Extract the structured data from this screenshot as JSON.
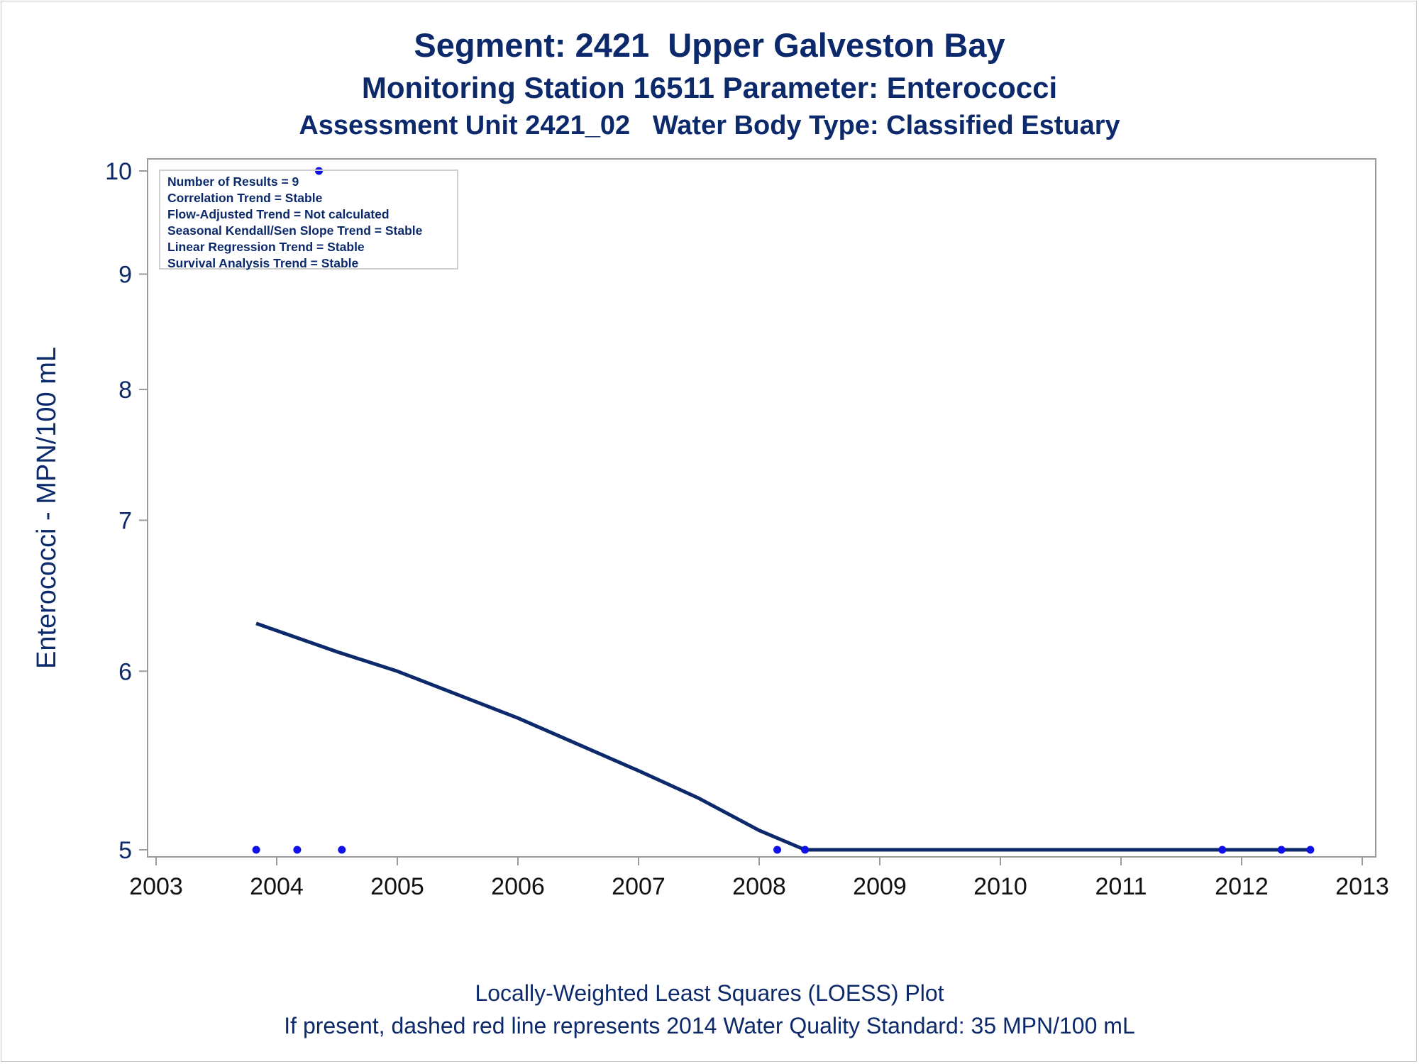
{
  "chart_data": {
    "type": "scatter",
    "title": "Segment: 2421  Upper Galveston Bay",
    "subtitle": "Monitoring Station 16511 Parameter: Enterococci",
    "subtitle2": "Assessment Unit 2421_02   Water Body Type: Classified Estuary",
    "xlabel": "",
    "ylabel": "Enterococci - MPN/100 mL",
    "y_scale": "log",
    "xlim": [
      2003,
      2013
    ],
    "ylim": [
      4.94,
      10.2
    ],
    "x_ticks": [
      2003,
      2004,
      2005,
      2006,
      2007,
      2008,
      2009,
      2010,
      2011,
      2012,
      2013
    ],
    "y_ticks": [
      5,
      6,
      7,
      8,
      9,
      10
    ],
    "points": [
      {
        "x": 2003.83,
        "y": 5
      },
      {
        "x": 2004.17,
        "y": 5
      },
      {
        "x": 2004.35,
        "y": 10
      },
      {
        "x": 2004.54,
        "y": 5
      },
      {
        "x": 2008.15,
        "y": 5
      },
      {
        "x": 2008.38,
        "y": 5
      },
      {
        "x": 2011.84,
        "y": 5
      },
      {
        "x": 2012.33,
        "y": 5
      },
      {
        "x": 2012.57,
        "y": 5
      }
    ],
    "loess": [
      {
        "x": 2003.83,
        "y": 6.3
      },
      {
        "x": 2004.5,
        "y": 6.12
      },
      {
        "x": 2005.0,
        "y": 6.0
      },
      {
        "x": 2006.0,
        "y": 5.72
      },
      {
        "x": 2007.0,
        "y": 5.42
      },
      {
        "x": 2007.5,
        "y": 5.27
      },
      {
        "x": 2008.0,
        "y": 5.1
      },
      {
        "x": 2008.38,
        "y": 5.0
      },
      {
        "x": 2010.25,
        "y": 5.0
      },
      {
        "x": 2012.57,
        "y": 5.0
      }
    ],
    "stats": [
      "Number of Results = 9",
      "Correlation Trend = Stable",
      "Flow-Adjusted Trend = Not calculated",
      "Seasonal Kendall/Sen Slope Trend = Stable",
      "Linear Regression Trend = Stable",
      "Survival Analysis Trend = Stable"
    ],
    "footnote1": "Locally-Weighted Least Squares (LOESS) Plot",
    "footnote2": "If present, dashed red line represents 2014 Water Quality Standard: 35 MPN/100 mL",
    "colors": {
      "text": "#0c2a6b",
      "points": "#1010e8",
      "line": "#0c2a6b",
      "axis": "#9a9a9a"
    },
    "legend_position": "top-left",
    "grid": false
  }
}
